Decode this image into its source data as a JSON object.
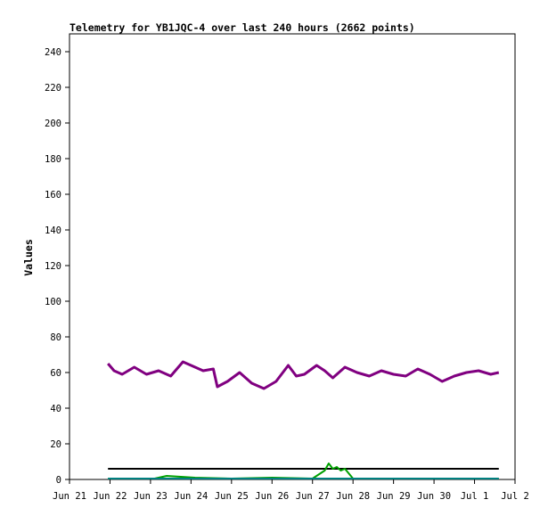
{
  "chart_data": {
    "type": "line",
    "title": "Telemetry for YB1JQC-4 over last 240 hours (2662 points)",
    "xlabel": "",
    "ylabel": "Values",
    "ylim": [
      0,
      250
    ],
    "xlim": [
      "Jun 21",
      "Jul 2"
    ],
    "y_ticks": [
      0,
      20,
      40,
      60,
      80,
      100,
      120,
      140,
      160,
      180,
      200,
      220,
      240
    ],
    "x_ticks": [
      "Jun 21",
      "Jun 22",
      "Jun 23",
      "Jun 24",
      "Jun 25",
      "Jun 26",
      "Jun 27",
      "Jun 28",
      "Jun 29",
      "Jun 30",
      "Jul 1",
      "Jul 2"
    ],
    "grid": false,
    "legend": "none",
    "colors": {
      "purple": "#800080",
      "green": "#00a000",
      "teal": "#008080",
      "black": "#000000"
    },
    "series": [
      {
        "color": "#800080",
        "x_days": [
          0.95,
          1.1,
          1.3,
          1.6,
          1.9,
          2.2,
          2.5,
          2.8,
          3.0,
          3.3,
          3.55,
          3.65,
          3.9,
          4.2,
          4.5,
          4.8,
          5.1,
          5.4,
          5.6,
          5.8,
          6.1,
          6.3,
          6.5,
          6.8,
          7.1,
          7.4,
          7.7,
          8.0,
          8.3,
          8.6,
          8.9,
          9.2,
          9.5,
          9.8,
          10.1,
          10.4,
          10.6
        ],
        "y": [
          65,
          61,
          59,
          63,
          59,
          61,
          58,
          66,
          64,
          61,
          62,
          52,
          55,
          60,
          54,
          51,
          55,
          64,
          58,
          59,
          64,
          61,
          57,
          63,
          60,
          58,
          61,
          59,
          58,
          62,
          59,
          55,
          58,
          60,
          61,
          59,
          60
        ]
      },
      {
        "color": "#000000",
        "x_days": [
          0.95,
          10.6
        ],
        "y": [
          6,
          6
        ]
      },
      {
        "color": "#00a000",
        "x_days": [
          0.95,
          2.1,
          2.4,
          3.1,
          4.0,
          5.0,
          6.0,
          6.3,
          6.4,
          6.5,
          6.6,
          6.7,
          6.8,
          7.0,
          8.0,
          9.0,
          10.0,
          10.6
        ],
        "y": [
          0.5,
          0.5,
          2,
          1,
          0.5,
          1,
          0.5,
          5,
          9,
          6,
          7,
          5,
          6,
          0.5,
          0.5,
          0.5,
          0.5,
          0.5
        ]
      },
      {
        "color": "#008080",
        "x_days": [
          0.95,
          10.6
        ],
        "y": [
          0.5,
          0.5
        ]
      }
    ]
  }
}
